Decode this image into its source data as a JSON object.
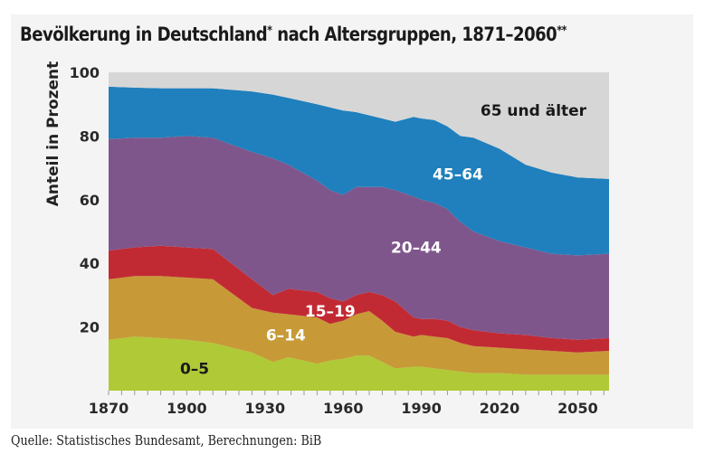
{
  "title": {
    "text": "Bevölkerung in Deutschland",
    "mark1": "*",
    "text2": " nach Altersgruppen, 1871–2060",
    "mark2": "**"
  },
  "source": "Quelle: Statistisches Bundesamt, Berechnungen: BiB",
  "colors": {
    "background": "#f4f4f4",
    "age_0_5": "#b0c936",
    "age_6_14": "#c79a37",
    "age_15_19": "#c22a33",
    "age_20_44": "#7f568c",
    "age_45_64": "#1f80bd",
    "age_65_plus": "#d6d6d6"
  },
  "chart_data": {
    "type": "area",
    "stacked": true,
    "title": "Bevölkerung in Deutschland* nach Altersgruppen, 1871–2060**",
    "xlabel": "",
    "ylabel": "Anteil in Prozent",
    "xlim": [
      1870,
      2062
    ],
    "ylim": [
      0,
      100
    ],
    "xticks": [
      1870,
      1900,
      1930,
      1960,
      1990,
      2020,
      2050
    ],
    "yticks": [
      20,
      40,
      60,
      80,
      100
    ],
    "grid": false,
    "legend": "inline labels",
    "x": [
      1871,
      1880,
      1890,
      1900,
      1910,
      1925,
      1933,
      1939,
      1950,
      1955,
      1960,
      1965,
      1970,
      1975,
      1980,
      1987,
      1990,
      1995,
      2000,
      2005,
      2010,
      2020,
      2030,
      2040,
      2050,
      2060
    ],
    "cumulative_top": {
      "0-5": [
        16,
        17,
        16.5,
        16,
        15,
        12,
        9,
        10.5,
        8.5,
        9.5,
        10,
        11,
        11,
        9,
        7,
        7.5,
        7.5,
        7,
        6.5,
        6,
        5.5,
        5.5,
        5,
        5,
        5,
        5
      ],
      "6-14": [
        35,
        36,
        36,
        35.5,
        35,
        26,
        24.5,
        24,
        23,
        21,
        22,
        24,
        25,
        22,
        18.5,
        17,
        17.5,
        17,
        16.5,
        15,
        14,
        13.5,
        13,
        12.5,
        12,
        12.5
      ],
      "15-19": [
        44,
        45,
        45.5,
        45,
        44.5,
        35,
        30,
        32,
        31,
        29,
        28,
        30,
        31,
        30,
        28,
        23,
        22.5,
        22.5,
        22,
        20,
        19,
        18,
        17.5,
        16.5,
        16,
        16.5
      ],
      "20-44": [
        79,
        79.5,
        79.5,
        80,
        79.5,
        75,
        73,
        71,
        66,
        63,
        61.5,
        64,
        64,
        64,
        63,
        61,
        60,
        59,
        57,
        53,
        50,
        47,
        45,
        43,
        42.5,
        43
      ],
      "45-64": [
        95.5,
        95.2,
        95,
        95,
        95,
        94,
        93,
        92,
        90,
        89,
        88,
        87.5,
        86.5,
        85.5,
        84.5,
        86,
        85.5,
        85,
        83,
        80,
        79.5,
        76,
        71,
        68.5,
        67,
        66.5
      ],
      "65 und älter": [
        100,
        100,
        100,
        100,
        100,
        100,
        100,
        100,
        100,
        100,
        100,
        100,
        100,
        100,
        100,
        100,
        100,
        100,
        100,
        100,
        100,
        100,
        100,
        100,
        100,
        100
      ]
    },
    "series": [
      {
        "name": "0–5",
        "key": "0-5",
        "color": "#b0c936",
        "label_color": "#1a1a1a",
        "label_at": [
          1903,
          7
        ]
      },
      {
        "name": "6–14",
        "key": "6-14",
        "color": "#c79a37",
        "label_color": "#ffffff",
        "label_at": [
          1938,
          17.5
        ]
      },
      {
        "name": "15–19",
        "key": "15-19",
        "color": "#c22a33",
        "label_color": "#ffffff",
        "label_at": [
          1955,
          25
        ]
      },
      {
        "name": "20–44",
        "key": "20-44",
        "color": "#7f568c",
        "label_color": "#ffffff",
        "label_at": [
          1988,
          45
        ]
      },
      {
        "name": "45–64",
        "key": "45-64",
        "color": "#1f80bd",
        "label_color": "#ffffff",
        "label_at": [
          2004,
          68
        ]
      },
      {
        "name": "65 und älter",
        "key": "65 und älter",
        "color": "#d6d6d6",
        "label_color": "#1a1a1a",
        "label_at": [
          2033,
          88
        ]
      }
    ]
  }
}
